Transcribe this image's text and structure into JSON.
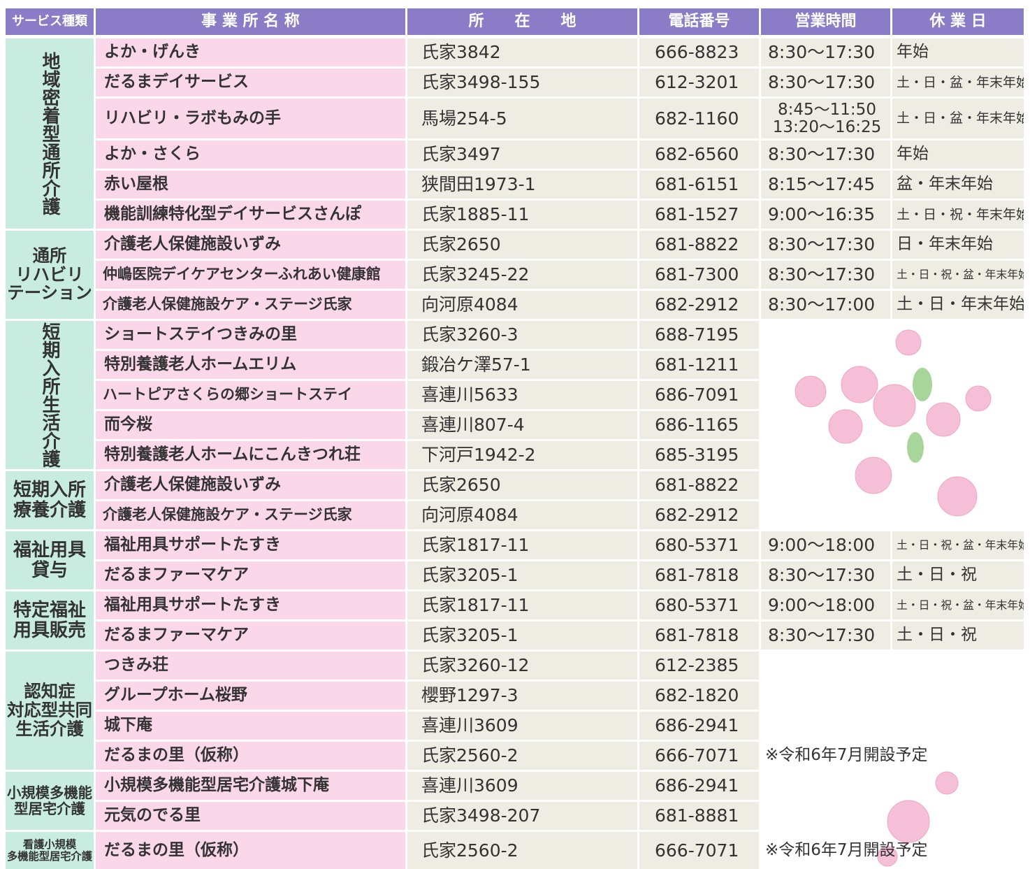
{
  "table": {
    "header": [
      "サービス種類",
      "事 業 所 名 称",
      "所　　在　　地",
      "電話番号",
      "営業時間",
      "休 業 日"
    ],
    "groups": [
      {
        "label": "地域密着型通所介護",
        "rows": [
          {
            "name": "よか・げんき",
            "address": "氏家3842",
            "phone": "666-8823",
            "hours": "8:30〜17:30",
            "holiday": "年始"
          },
          {
            "name": "だるまデイサービス",
            "address": "氏家3498-155",
            "phone": "612-3201",
            "hours": "8:30〜17:30",
            "holiday": "土・日・盆・年末年始"
          },
          {
            "name": "リハビリ・ラボもみの手",
            "address": "馬場254-5",
            "phone": "682-1160",
            "hours": "8:45〜11:50\n13:20〜16:25",
            "holiday": "土・日・盆・年末年始"
          },
          {
            "name": "よか・さくら",
            "address": "氏家3497",
            "phone": "682-6560",
            "hours": "8:30〜17:30",
            "holiday": "年始"
          },
          {
            "name": "赤い屋根",
            "address": "狭間田1973-1",
            "phone": "681-6151",
            "hours": "8:15〜17:45",
            "holiday": "盆・年末年始"
          },
          {
            "name": "機能訓練特化型デイサービスさんぽ",
            "address": "氏家1885-11",
            "phone": "681-1527",
            "hours": "9:00〜16:35",
            "holiday": "土・日・祝・年末年始"
          }
        ]
      },
      {
        "label": "通所\nリハビリ\nテーション",
        "rows": [
          {
            "name": "介護老人保健施設いずみ",
            "address": "氏家2650",
            "phone": "681-8822",
            "hours": "8:30〜17:30",
            "holiday": "日・年末年始"
          },
          {
            "name": "仲嶋医院デイケアセンターふれあい健康館",
            "address": "氏家3245-22",
            "phone": "681-7300",
            "hours": "8:30〜17:30",
            "holiday": "土・日・祝・盆・年末年始"
          },
          {
            "name": "介護老人保健施設ケア・ステージ氏家",
            "address": "向河原4084",
            "phone": "682-2912",
            "hours": "8:30〜17:00",
            "holiday": "土・日・年末年始"
          }
        ]
      },
      {
        "label": "短期入所生活介護",
        "rows": [
          {
            "name": "ショートステイつきみの里",
            "address": "氏家3260-3",
            "phone": "688-7195"
          },
          {
            "name": "特別養護老人ホームエリム",
            "address": "鍛冶ケ澤57-1",
            "phone": "681-1211"
          },
          {
            "name": "ハートピアさくらの郷ショートステイ",
            "address": "喜連川5633",
            "phone": "686-7091"
          },
          {
            "name": "而今桜",
            "address": "喜連川807-4",
            "phone": "686-1165"
          },
          {
            "name": "特別養護老人ホームにこんきつれ荘",
            "address": "下河戸1942-2",
            "phone": "685-3195"
          }
        ]
      },
      {
        "label": "短期入所\n療養介護",
        "rows": [
          {
            "name": "介護老人保健施設いずみ",
            "address": "氏家2650",
            "phone": "681-8822"
          },
          {
            "name": "介護老人保健施設ケア・ステージ氏家",
            "address": "向河原4084",
            "phone": "682-2912"
          }
        ]
      },
      {
        "label": "福祉用具\n貸与",
        "rows": [
          {
            "name": "福祉用具サポートたすき",
            "address": "氏家1817-11",
            "phone": "680-5371",
            "hours": "9:00〜18:00",
            "holiday": "土・日・祝・盆・年末年始"
          },
          {
            "name": "だるまファーマケア",
            "address": "氏家3205-1",
            "phone": "681-7818",
            "hours": "8:30〜17:30",
            "holiday": "土・日・祝"
          }
        ]
      },
      {
        "label": "特定福祉\n用具販売",
        "rows": [
          {
            "name": "福祉用具サポートたすき",
            "address": "氏家1817-11",
            "phone": "680-5371",
            "hours": "9:00〜18:00",
            "holiday": "土・日・祝・盆・年末年始"
          },
          {
            "name": "だるまファーマケア",
            "address": "氏家3205-1",
            "phone": "681-7818",
            "hours": "8:30〜17:30",
            "holiday": "土・日・祝"
          }
        ]
      },
      {
        "label": "認知症\n対応型共同\n生活介護",
        "rows": [
          {
            "name": "つきみ荘",
            "address": "氏家3260-12",
            "phone": "612-2385"
          },
          {
            "name": "グループホーム桜野",
            "address": "櫻野1297-3",
            "phone": "682-1820"
          },
          {
            "name": "城下庵",
            "address": "喜連川3609",
            "phone": "686-2941"
          },
          {
            "name": "だるまの里（仮称）",
            "address": "氏家2560-2",
            "phone": "666-7071",
            "note": "※令和6年7月開設予定"
          }
        ]
      },
      {
        "label": "小規模多機能\n型居宅介護",
        "rows": [
          {
            "name": "小規模多機能型居宅介護城下庵",
            "address": "喜連川3609",
            "phone": "686-2941"
          },
          {
            "name": "元気のでる里",
            "address": "氏家3498-207",
            "phone": "681-8881"
          }
        ]
      },
      {
        "label": "看護小規模\n多機能型居宅介護",
        "rows": [
          {
            "name": "だるまの里（仮称）",
            "address": "氏家2560-2",
            "phone": "666-7071",
            "note": "※令和6年7月開設予定"
          }
        ]
      }
    ]
  }
}
